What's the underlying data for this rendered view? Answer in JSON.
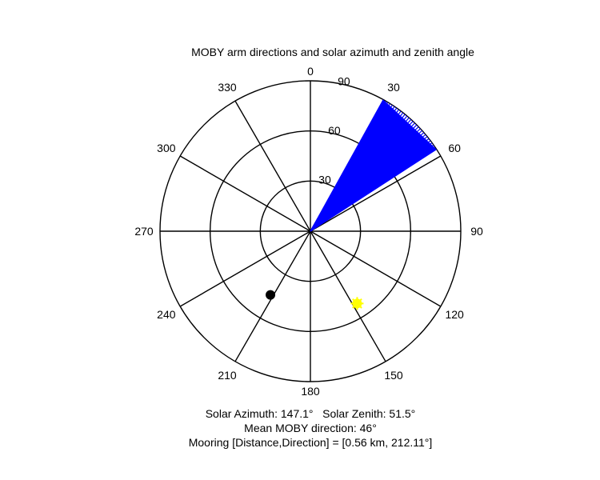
{
  "chart_data": {
    "type": "polar",
    "title": "MOBY arm directions and solar azimuth and zenith angle",
    "orientation": "azimuth clockwise from north (0 at top)",
    "angle_ticks": [
      "0",
      "30",
      "60",
      "90",
      "120",
      "150",
      "180",
      "210",
      "240",
      "270",
      "300",
      "330"
    ],
    "radial_ticks": [
      "30",
      "60",
      "90"
    ],
    "radial_range": [
      0,
      90
    ],
    "grid": true,
    "series": [
      {
        "kind": "arm-direction-fan",
        "color": "#0000ff",
        "directions_deg": [
          29,
          30,
          31,
          32,
          33,
          34,
          35,
          36,
          37,
          38,
          39,
          40,
          41,
          42,
          43,
          44,
          45,
          46,
          47,
          48,
          49,
          50,
          51,
          52,
          53,
          54,
          55,
          56,
          57
        ],
        "radius": 90
      },
      {
        "kind": "sun-position",
        "color": "#ffff00",
        "azimuth_deg": 147.1,
        "zenith_deg": 51.5
      },
      {
        "kind": "mooring-position",
        "color": "#000000",
        "direction_deg": 212.11,
        "radius": 45
      }
    ],
    "footer": [
      "Solar Azimuth: 147.1°   Solar Zenith: 51.5°",
      "Mean MOBY direction: 46°",
      "Mooring [Distance,Direction] = [0.56 km, 212.11°]"
    ]
  }
}
